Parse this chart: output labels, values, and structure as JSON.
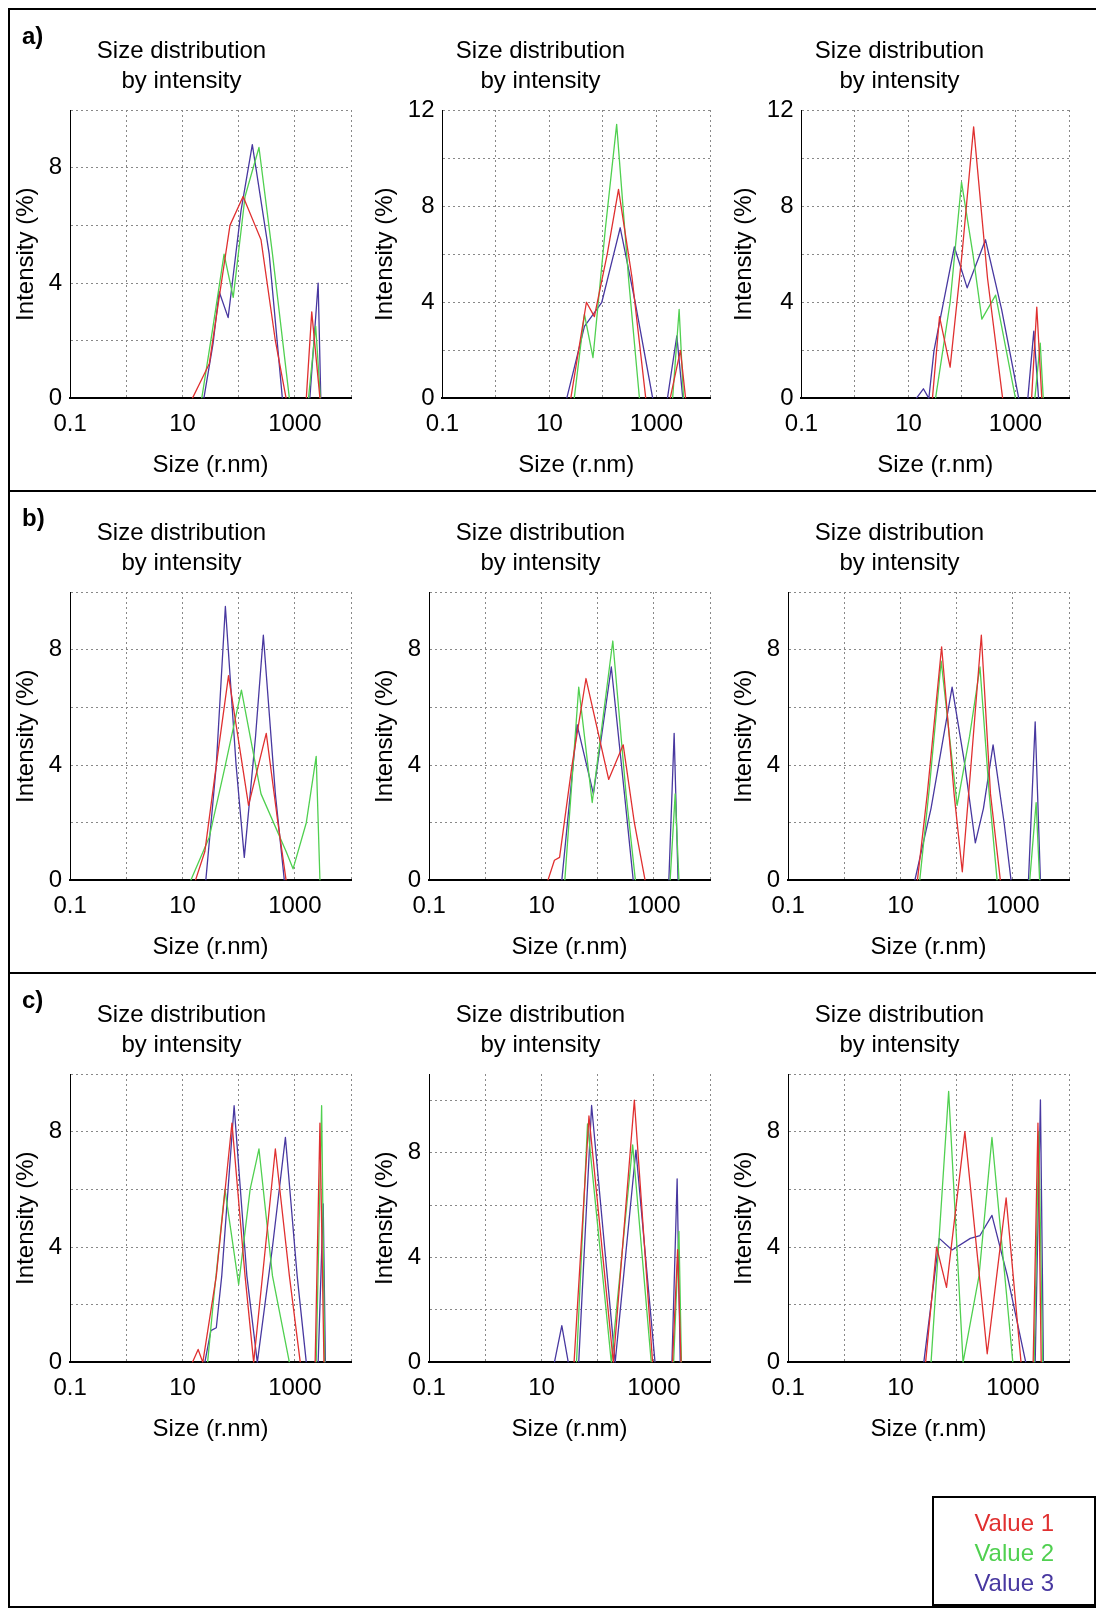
{
  "chart_data": [
    {
      "type": "line",
      "title": "Size distribution\nby intensity",
      "xlabel": "Size (r.nm)",
      "ylabel": "Intensity (%)",
      "annotations": [
        "a)"
      ],
      "log": "x",
      "xlim": [
        0.1,
        10000
      ],
      "xticks": [
        0.1,
        {
          "value": 1,
          "label": null
        },
        10,
        {
          "value": 100,
          "label": null
        },
        1000,
        {
          "value": 10000,
          "label": null
        }
      ],
      "ylim": [
        0,
        10
      ],
      "yticks": [
        0,
        {
          "value": 2,
          "label": null
        },
        4,
        {
          "value": 6,
          "label": null
        },
        8,
        {
          "value": 10,
          "label": null
        }
      ],
      "grid": true,
      "marker": "none",
      "line_style": "solid",
      "series": [
        {
          "color": "#e03030",
          "x": [
            15,
            20,
            30,
            45,
            70,
            120,
            250,
            450,
            700,
            1000,
            1600,
            2000,
            2800
          ],
          "values": [
            0,
            0.5,
            1.2,
            3.5,
            6,
            7,
            5.5,
            2,
            0,
            null,
            0,
            3,
            0
          ]
        },
        {
          "color": "#50d050",
          "x": [
            22,
            35,
            55,
            80,
            130,
            230,
            400,
            800,
            1100,
            1750,
            2350,
            2850
          ],
          "values": [
            0,
            2.5,
            5,
            3.5,
            7,
            8.7,
            5,
            0,
            null,
            0,
            2.5,
            0
          ]
        },
        {
          "color": "#4838a0",
          "x": [
            24,
            35,
            45,
            65,
            110,
            175,
            350,
            600,
            1100,
            1850,
            2600,
            2900
          ],
          "values": [
            0,
            1.9,
            3.7,
            2.8,
            6.5,
            8.8,
            5,
            0,
            null,
            0,
            4,
            0
          ]
        }
      ]
    },
    {
      "type": "line",
      "title": "Size distribution\nby intensity",
      "xlabel": "Size (r.nm)",
      "ylabel": "Intensity (%)",
      "log": "x",
      "xlim": [
        0.1,
        10000
      ],
      "xticks": [
        0.1,
        {
          "value": 1,
          "label": null
        },
        10,
        {
          "value": 100,
          "label": null
        },
        1000,
        {
          "value": 10000,
          "label": null
        }
      ],
      "ylim": [
        0,
        12
      ],
      "yticks": [
        0,
        {
          "value": 2,
          "label": null
        },
        4,
        {
          "value": 6,
          "label": null
        },
        8,
        {
          "value": 10,
          "label": null
        },
        12
      ],
      "grid": true,
      "marker": "none",
      "line_style": "solid",
      "series": [
        {
          "color": "#e03030",
          "x": [
            25,
            49,
            69,
            120,
            195,
            350,
            630,
            1000,
            1800,
            2800,
            3500
          ],
          "values": [
            0,
            4,
            3.4,
            6,
            8.7,
            5,
            0,
            null,
            0,
            2,
            0
          ]
        },
        {
          "color": "#50d050",
          "x": [
            29,
            45,
            65,
            110,
            180,
            300,
            480,
            1000,
            2000,
            2650,
            3200
          ],
          "values": [
            0,
            3.5,
            1.7,
            7,
            11.4,
            5,
            0,
            null,
            0,
            3.7,
            0
          ]
        },
        {
          "color": "#4838a0",
          "x": [
            21,
            45,
            95,
            210,
            400,
            850,
            1000,
            1600,
            2400,
            3100
          ],
          "values": [
            0,
            3,
            4,
            7.1,
            4,
            0,
            null,
            0,
            2.6,
            0
          ]
        }
      ]
    },
    {
      "type": "line",
      "title": "Size distribution\nby intensity",
      "xlabel": "Size (r.nm)",
      "ylabel": "Intensity (%)",
      "log": "x",
      "xlim": [
        0.1,
        10000
      ],
      "xticks": [
        0.1,
        {
          "value": 1,
          "label": null
        },
        10,
        {
          "value": 100,
          "label": null
        },
        1000,
        {
          "value": 10000,
          "label": null
        }
      ],
      "ylim": [
        0,
        12
      ],
      "yticks": [
        0,
        {
          "value": 2,
          "label": null
        },
        4,
        {
          "value": 6,
          "label": null
        },
        8,
        {
          "value": 10,
          "label": null
        },
        12
      ],
      "grid": true,
      "marker": "none",
      "line_style": "solid",
      "series": [
        {
          "color": "#e03030",
          "x": [
            28,
            38,
            60,
            100,
            165,
            300,
            575,
            1000,
            2000,
            2500,
            3100
          ],
          "values": [
            0,
            3.4,
            1.3,
            6,
            11.3,
            5,
            0,
            null,
            0,
            3.8,
            0
          ]
        },
        {
          "color": "#50d050",
          "x": [
            32,
            60,
            98,
            160,
            235,
            425,
            1000,
            1500,
            2300,
            2900,
            3300
          ],
          "values": [
            0,
            4,
            9,
            6,
            3.3,
            4.3,
            0,
            null,
            0,
            2.3,
            0
          ]
        },
        {
          "color": "#4838a0",
          "x": [
            14,
            19,
            24,
            30,
            72,
            125,
            275,
            550,
            1150,
            1400,
            1700,
            2200,
            2700
          ],
          "values": [
            0,
            0.4,
            0,
            2,
            6.3,
            4.6,
            6.6,
            3.7,
            0,
            null,
            0,
            2.8,
            0
          ]
        }
      ]
    },
    {
      "type": "line",
      "title": "Size distribution\nby intensity",
      "xlabel": "Size (r.nm)",
      "ylabel": "Intensity (%)",
      "annotations": [
        "b)"
      ],
      "log": "x",
      "xlim": [
        0.1,
        10000
      ],
      "xticks": [
        0.1,
        {
          "value": 1,
          "label": null
        },
        10,
        {
          "value": 100,
          "label": null
        },
        1000,
        {
          "value": 10000,
          "label": null
        }
      ],
      "ylim": [
        0,
        10
      ],
      "yticks": [
        0,
        {
          "value": 2,
          "label": null
        },
        4,
        {
          "value": 6,
          "label": null
        },
        8,
        {
          "value": 10,
          "label": null
        }
      ],
      "grid": true,
      "marker": "none",
      "line_style": "solid",
      "series": [
        {
          "color": "#e03030",
          "x": [
            17,
            25,
            40,
            66,
            150,
            310,
            500,
            700
          ],
          "values": [
            0,
            1,
            4,
            7.1,
            2.6,
            5.1,
            2,
            0
          ]
        },
        {
          "color": "#50d050",
          "x": [
            14,
            30,
            58,
            112,
            250,
            700,
            930,
            1600,
            2400,
            2800
          ],
          "values": [
            0,
            1.5,
            4,
            6.6,
            3,
            1,
            0.4,
            2,
            4.3,
            0
          ]
        },
        {
          "color": "#4838a0",
          "x": [
            26,
            40,
            58,
            90,
            126,
            200,
            275,
            450,
            650
          ],
          "values": [
            0,
            4,
            9.5,
            4,
            0.8,
            5,
            8.5,
            3,
            0
          ]
        }
      ]
    },
    {
      "type": "line",
      "title": "Size distribution\nby intensity",
      "xlabel": "Size (r.nm)",
      "ylabel": "Intensity (%)",
      "log": "x",
      "xlim": [
        0.1,
        10000
      ],
      "xticks": [
        0.1,
        {
          "value": 1,
          "label": null
        },
        10,
        {
          "value": 100,
          "label": null
        },
        1000,
        {
          "value": 10000,
          "label": null
        }
      ],
      "ylim": [
        0,
        10
      ],
      "yticks": [
        0,
        {
          "value": 2,
          "label": null
        },
        4,
        {
          "value": 6,
          "label": null
        },
        8,
        {
          "value": 10,
          "label": null
        }
      ],
      "grid": true,
      "marker": "none",
      "line_style": "solid",
      "series": [
        {
          "color": "#e03030",
          "x": [
            13,
            17,
            21,
            35,
            62,
            157,
            285,
            450,
            700
          ],
          "values": [
            0,
            0.7,
            0.8,
            4,
            7,
            3.5,
            4.7,
            2,
            0
          ]
        },
        {
          "color": "#50d050",
          "x": [
            26,
            46,
            80,
            186,
            320,
            470,
            1000,
            1950,
            2400,
            2800
          ],
          "values": [
            0,
            6.7,
            2.7,
            8.3,
            3,
            0,
            null,
            0,
            3,
            0
          ]
        },
        {
          "color": "#4838a0",
          "x": [
            23,
            43,
            84,
            175,
            300,
            430,
            1000,
            1850,
            2300,
            2700
          ],
          "values": [
            0,
            5.4,
            3,
            7.4,
            3,
            0,
            null,
            0,
            5.1,
            0
          ]
        }
      ]
    },
    {
      "type": "line",
      "title": "Size distribution\nby intensity",
      "xlabel": "Size (r.nm)",
      "ylabel": "Intensity (%)",
      "log": "x",
      "xlim": [
        0.1,
        10000
      ],
      "xticks": [
        0.1,
        {
          "value": 1,
          "label": null
        },
        10,
        {
          "value": 100,
          "label": null
        },
        1000,
        {
          "value": 10000,
          "label": null
        }
      ],
      "ylim": [
        0,
        10
      ],
      "yticks": [
        0,
        {
          "value": 2,
          "label": null
        },
        4,
        {
          "value": 6,
          "label": null
        },
        8,
        {
          "value": 10,
          "label": null
        }
      ],
      "grid": true,
      "marker": "none",
      "line_style": "solid",
      "series": [
        {
          "color": "#e03030",
          "x": [
            20,
            30,
            54,
            90,
            126,
            180,
            275,
            400,
            600
          ],
          "values": [
            0,
            3,
            8.1,
            3,
            0.3,
            4,
            8.5,
            3,
            0
          ]
        },
        {
          "color": "#50d050",
          "x": [
            22,
            33,
            53,
            102,
            170,
            260,
            380,
            525,
            1000,
            2000,
            2600,
            3000
          ],
          "values": [
            0,
            3.3,
            7.6,
            2.6,
            5,
            7.4,
            3,
            0,
            null,
            0,
            2.7,
            0
          ]
        },
        {
          "color": "#4838a0",
          "x": [
            18,
            35,
            83,
            140,
            215,
            300,
            445,
            700,
            930,
            1300,
            1900,
            2500,
            3100
          ],
          "values": [
            0,
            2.5,
            6.7,
            4,
            1.3,
            2.5,
            4.7,
            2,
            0,
            null,
            0,
            5.5,
            0
          ]
        }
      ]
    },
    {
      "type": "line",
      "title": "Size distribution\nby intensity",
      "xlabel": "Size (r.nm)",
      "ylabel": "Intensity (%)",
      "annotations": [
        "c)"
      ],
      "log": "x",
      "xlim": [
        0.1,
        10000
      ],
      "xticks": [
        0.1,
        {
          "value": 1,
          "label": null
        },
        10,
        {
          "value": 100,
          "label": null
        },
        1000,
        {
          "value": 10000,
          "label": null
        }
      ],
      "ylim": [
        0,
        10
      ],
      "yticks": [
        0,
        {
          "value": 2,
          "label": null
        },
        4,
        {
          "value": 6,
          "label": null
        },
        8,
        {
          "value": 10,
          "label": null
        }
      ],
      "grid": true,
      "marker": "none",
      "line_style": "solid",
      "series": [
        {
          "color": "#e03030",
          "x": [
            15,
            19,
            23,
            40,
            76,
            130,
            185,
            300,
            450,
            800,
            1250,
            1700,
            2300,
            2800,
            3300
          ],
          "values": [
            0,
            0.45,
            0,
            3,
            8.3,
            3,
            0,
            4,
            7.4,
            3,
            0,
            null,
            0,
            8.3,
            0
          ]
        },
        {
          "color": "#50d050",
          "x": [
            28,
            35,
            57,
            100,
            160,
            230,
            400,
            800,
            1700,
            2400,
            3000,
            3400
          ],
          "values": [
            0,
            2,
            6,
            2.7,
            6,
            7.4,
            3,
            0,
            null,
            0,
            8.9,
            0
          ]
        },
        {
          "color": "#4838a0",
          "x": [
            25,
            32,
            40,
            50,
            83,
            140,
            215,
            400,
            680,
            1100,
            1600,
            2000,
            2600,
            3200,
            3500
          ],
          "values": [
            0,
            1.1,
            1.2,
            3,
            8.9,
            3,
            0,
            4,
            7.8,
            3,
            0,
            null,
            0,
            5.5,
            0
          ]
        }
      ]
    },
    {
      "type": "line",
      "title": "Size distribution\nby intensity",
      "xlabel": "Size (r.nm)",
      "ylabel": "Intensity (%)",
      "log": "x",
      "xlim": [
        0.1,
        10000
      ],
      "xticks": [
        0.1,
        {
          "value": 1,
          "label": null
        },
        10,
        {
          "value": 100,
          "label": null
        },
        1000,
        {
          "value": 10000,
          "label": null
        }
      ],
      "ylim": [
        0,
        11
      ],
      "yticks": [
        0,
        {
          "value": 2,
          "label": null
        },
        4,
        {
          "value": 6,
          "label": null
        },
        8,
        {
          "value": 10,
          "label": null
        }
      ],
      "grid": true,
      "marker": "none",
      "line_style": "solid",
      "series": [
        {
          "color": "#e03030",
          "x": [
            38,
            70,
            190,
            450,
            950,
            1500,
            2150,
            2650,
            3050
          ],
          "values": [
            0,
            9.4,
            0,
            10,
            0,
            null,
            0,
            4.3,
            0
          ]
        },
        {
          "color": "#50d050",
          "x": [
            42,
            66,
            175,
            420,
            900,
            1500,
            2250,
            2800,
            3100
          ],
          "values": [
            0,
            9.1,
            0,
            8.3,
            0,
            null,
            0,
            5,
            0
          ]
        },
        {
          "color": "#4838a0",
          "x": [
            17,
            23,
            30,
            36,
            46,
            78,
            205,
            480,
            1050,
            1500,
            2100,
            2600,
            2950
          ],
          "values": [
            0,
            1.4,
            0,
            null,
            0,
            9.8,
            0,
            8.1,
            0,
            null,
            0,
            7,
            0
          ]
        }
      ]
    },
    {
      "type": "line",
      "title": "Size distribution\nby intensity",
      "xlabel": "Size (r.nm)",
      "ylabel": "Intensity (%)",
      "log": "x",
      "xlim": [
        0.1,
        10000
      ],
      "xticks": [
        0.1,
        {
          "value": 1,
          "label": null
        },
        10,
        {
          "value": 100,
          "label": null
        },
        1000,
        {
          "value": 10000,
          "label": null
        }
      ],
      "ylim": [
        0,
        10
      ],
      "yticks": [
        0,
        {
          "value": 2,
          "label": null
        },
        4,
        {
          "value": 6,
          "label": null
        },
        8,
        {
          "value": 10,
          "label": null
        }
      ],
      "grid": true,
      "marker": "none",
      "line_style": "solid",
      "legend": "bottom right",
      "series": [
        {
          "name": "Value 1",
          "color": "#e03030",
          "x": [
            28,
            44,
            66,
            140,
            350,
            760,
            1400,
            2000,
            2300,
            2800,
            3200
          ],
          "values": [
            0,
            4,
            2.6,
            8,
            0.3,
            5.7,
            0,
            null,
            0,
            8.3,
            0
          ]
        },
        {
          "name": "Value 2",
          "color": "#50d050",
          "x": [
            35,
            72,
            130,
            250,
            425,
            1000,
            1500,
            2400,
            2900,
            3400
          ],
          "values": [
            0,
            9.4,
            0,
            3,
            7.8,
            0,
            null,
            0,
            8,
            0
          ]
        },
        {
          "name": "Value 3",
          "color": "#4838a0",
          "x": [
            26,
            49,
            83,
            175,
            260,
            425,
            800,
            1700,
            2050,
            2500,
            3100,
            3500
          ],
          "values": [
            0,
            4.3,
            3.9,
            4.3,
            4.4,
            5.1,
            3,
            0,
            null,
            0,
            9.1,
            0
          ]
        }
      ]
    }
  ]
}
